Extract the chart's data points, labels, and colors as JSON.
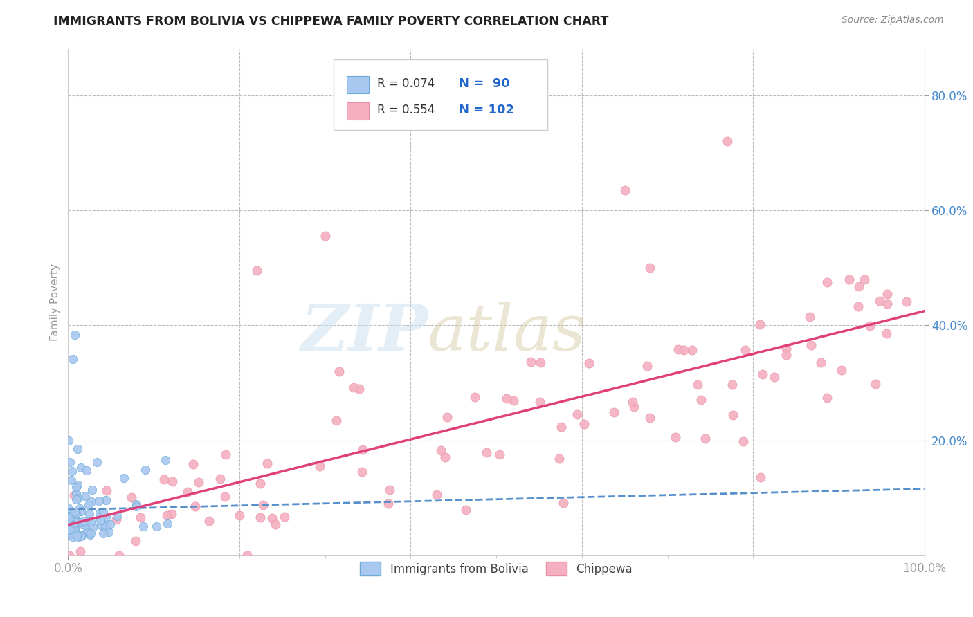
{
  "title": "IMMIGRANTS FROM BOLIVIA VS CHIPPEWA FAMILY POVERTY CORRELATION CHART",
  "source_text": "Source: ZipAtlas.com",
  "ylabel": "Family Poverty",
  "xlim": [
    0,
    1.0
  ],
  "ylim": [
    0,
    0.88
  ],
  "ytick_vals": [
    0.2,
    0.4,
    0.6,
    0.8
  ],
  "ytick_labels": [
    "20.0%",
    "40.0%",
    "60.0%",
    "80.0%"
  ],
  "xtick_vals": [
    0.0,
    1.0
  ],
  "xtick_labels": [
    "0.0%",
    "100.0%"
  ],
  "bolivia_color": "#a8c8f0",
  "bolivia_edge_color": "#6aaad4",
  "chippewa_color": "#f4b0c0",
  "chippewa_edge_color": "#e890a8",
  "bolivia_line_color": "#5590cc",
  "chippewa_line_color": "#e0407a",
  "bolivia_R": 0.074,
  "bolivia_N": 90,
  "chippewa_R": 0.554,
  "chippewa_N": 102,
  "legend_bolivia_label": "Immigrants from Bolivia",
  "legend_chippewa_label": "Chippewa",
  "watermark_zip": "ZIP",
  "watermark_atlas": "atlas",
  "background_color": "#ffffff",
  "grid_color": "#bbbbbb",
  "title_color": "#222222",
  "tick_color": "#4488cc",
  "axis_color": "#999999"
}
